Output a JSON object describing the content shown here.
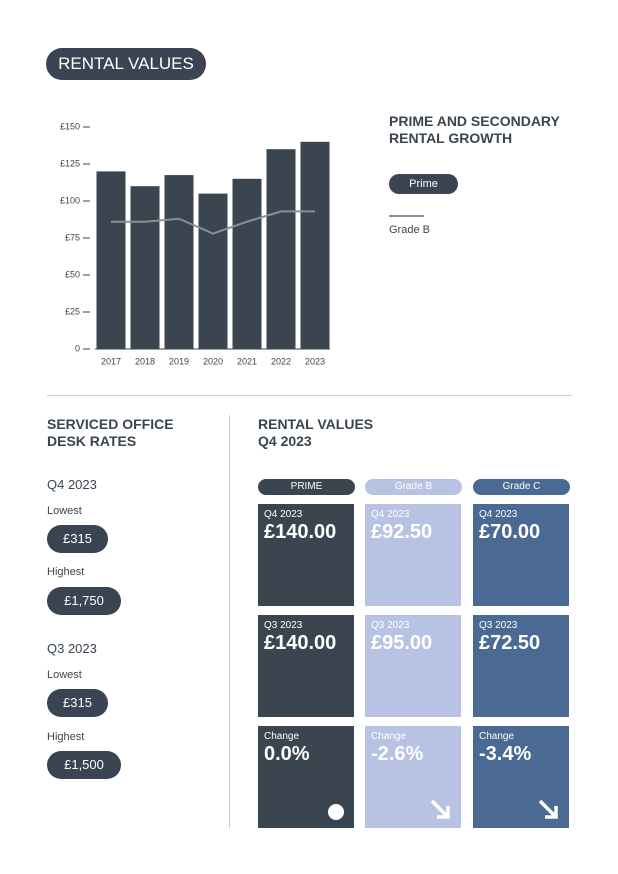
{
  "header": {
    "title": "RENTAL VALUES"
  },
  "chart_data": {
    "type": "bar",
    "title": "PRIME AND SECONDARY RENTAL GROWTH",
    "categories": [
      "2017",
      "2018",
      "2019",
      "2020",
      "2021",
      "2022",
      "2023"
    ],
    "series": [
      {
        "name": "Prime",
        "type": "bar",
        "color": "#3a4550",
        "values": [
          120,
          110,
          117.5,
          105,
          115,
          135,
          140
        ]
      },
      {
        "name": "Grade B",
        "type": "line",
        "color": "#8a8f95",
        "values": [
          86,
          86,
          88,
          78,
          86,
          93,
          93
        ]
      }
    ],
    "ylim": [
      0,
      150
    ],
    "yticks": [
      {
        "value": 0,
        "label": "0"
      },
      {
        "value": 25,
        "label": "£25"
      },
      {
        "value": 50,
        "label": "£50"
      },
      {
        "value": 75,
        "label": "£75"
      },
      {
        "value": 100,
        "label": "£100"
      },
      {
        "value": 125,
        "label": "£125"
      },
      {
        "value": 150,
        "label": "£150"
      }
    ]
  },
  "desk_rates": {
    "title": "SERVICED OFFICE DESK RATES",
    "periods": [
      {
        "period": "Q4 2023",
        "lowest_label": "Lowest",
        "lowest": "£315",
        "highest_label": "Highest",
        "highest": "£1,750"
      },
      {
        "period": "Q3 2023",
        "lowest_label": "Lowest",
        "lowest": "£315",
        "highest_label": "Highest",
        "highest": "£1,500"
      }
    ]
  },
  "rental_table": {
    "title": "RENTAL VALUES Q4 2023",
    "columns": [
      {
        "name": "PRIME",
        "cells": [
          {
            "label": "Q4 2023",
            "value": "£140.00"
          },
          {
            "label": "Q3 2023",
            "value": "£140.00"
          },
          {
            "label": "Change",
            "value": "0.0%"
          }
        ]
      },
      {
        "name": "Grade B",
        "cells": [
          {
            "label": "Q4 2023",
            "value": "£92.50"
          },
          {
            "label": "Q3 2023",
            "value": "£95.00"
          },
          {
            "label": "Change",
            "value": "-2.6%"
          }
        ]
      },
      {
        "name": "Grade C",
        "cells": [
          {
            "label": "Q4 2023",
            "value": "£70.00"
          },
          {
            "label": "Q3 2023",
            "value": "£72.50"
          },
          {
            "label": "Change",
            "value": "-3.4%"
          }
        ]
      }
    ]
  }
}
